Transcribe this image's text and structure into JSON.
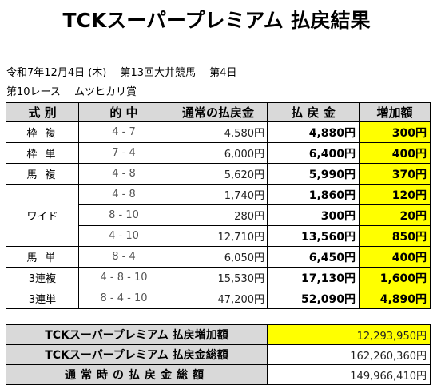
{
  "title": "TCKスーパープレミアム 払戻結果",
  "info": {
    "line1": "令和7年12月4日 (木)　 第13回大井競馬　 第4日",
    "line2": "第10レース　 ムツヒカリ賞"
  },
  "headers": {
    "type": "式 別",
    "combo": "的 中",
    "normal": "通常の払戻金",
    "payout": "払 戻 金",
    "increase": "増加額"
  },
  "rows": [
    {
      "type": "枠 複",
      "combo": "4 - 7",
      "normal": "4,580円",
      "payout": "4,880円",
      "increase": "300円"
    },
    {
      "type": "枠 単",
      "combo": "7 - 4",
      "normal": "6,000円",
      "payout": "6,400円",
      "increase": "400円"
    },
    {
      "type": "馬 複",
      "combo": "4 - 8",
      "normal": "5,620円",
      "payout": "5,990円",
      "increase": "370円"
    },
    {
      "type": "ワイド",
      "combo": "4 - 8",
      "normal": "1,740円",
      "payout": "1,860円",
      "increase": "120円"
    },
    {
      "type": "",
      "combo": "8 - 10",
      "normal": "280円",
      "payout": "300円",
      "increase": "20円"
    },
    {
      "type": "",
      "combo": "4 - 10",
      "normal": "12,710円",
      "payout": "13,560円",
      "increase": "850円"
    },
    {
      "type": "馬 単",
      "combo": "8 - 4",
      "normal": "6,050円",
      "payout": "6,450円",
      "increase": "400円"
    },
    {
      "type": "3連複",
      "combo": "4 - 8 - 10",
      "normal": "15,530円",
      "payout": "17,130円",
      "increase": "1,600円"
    },
    {
      "type": "3連単",
      "combo": "8 - 4 - 10",
      "normal": "47,200円",
      "payout": "52,090円",
      "increase": "4,890円"
    }
  ],
  "summary": [
    {
      "label": "TCKスーパープレミアム 払戻増加額",
      "value": "12,293,950円"
    },
    {
      "label": "TCKスーパープレミアム 払戻金総額",
      "value": "162,260,360円"
    },
    {
      "label": "通常時の払戻金総額",
      "value": "149,966,410円"
    }
  ]
}
